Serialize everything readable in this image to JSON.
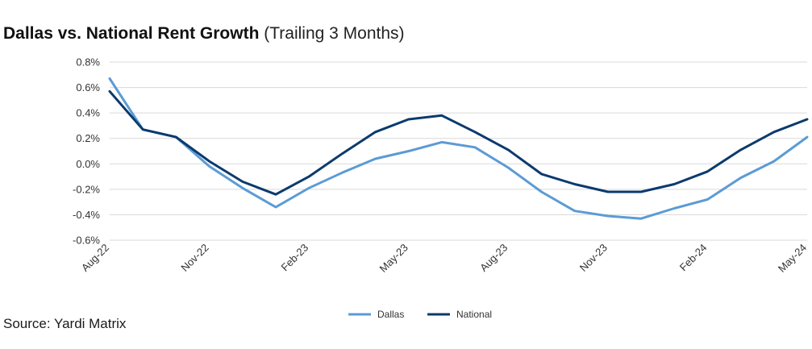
{
  "header": {
    "title": "Dallas vs. National Rent Growth",
    "subtitle": "(Trailing 3 Months)"
  },
  "footer": {
    "source": "Source: Yardi Matrix"
  },
  "chart_data": {
    "type": "line",
    "title": "Dallas vs. National Rent Growth",
    "subtitle": "(Trailing 3 Months)",
    "xlabel": "",
    "ylabel": "",
    "x": [
      "Aug-22",
      "Sep-22",
      "Oct-22",
      "Nov-22",
      "Dec-22",
      "Jan-23",
      "Feb-23",
      "Mar-23",
      "Apr-23",
      "May-23",
      "Jun-23",
      "Jul-23",
      "Aug-23",
      "Sep-23",
      "Oct-23",
      "Nov-23",
      "Dec-23",
      "Jan-24",
      "Feb-24",
      "Mar-24",
      "Apr-24",
      "May-24"
    ],
    "x_tick_labels": [
      "Aug-22",
      "Nov-22",
      "Feb-23",
      "May-23",
      "Aug-23",
      "Nov-23",
      "Feb-24",
      "May-24"
    ],
    "ylim": [
      -0.6,
      0.8
    ],
    "y_ticks": [
      0.8,
      0.6,
      0.4,
      0.2,
      0.0,
      -0.2,
      -0.4,
      -0.6
    ],
    "y_tick_labels": [
      "0.8%",
      "0.6%",
      "0.4%",
      "0.2%",
      "0.0%",
      "-0.2%",
      "-0.4%",
      "-0.6%"
    ],
    "grid": true,
    "legend_position": "bottom-center",
    "series": [
      {
        "name": "Dallas",
        "color": "#5b9bd5",
        "values": [
          0.67,
          0.27,
          0.21,
          -0.02,
          -0.19,
          -0.34,
          -0.19,
          -0.07,
          0.04,
          0.1,
          0.17,
          0.13,
          -0.03,
          -0.22,
          -0.37,
          -0.41,
          -0.43,
          -0.35,
          -0.28,
          -0.11,
          0.02,
          0.21
        ]
      },
      {
        "name": "National",
        "color": "#0b3a6e",
        "values": [
          0.57,
          0.27,
          0.21,
          0.02,
          -0.14,
          -0.24,
          -0.1,
          0.08,
          0.25,
          0.35,
          0.38,
          0.25,
          0.11,
          -0.08,
          -0.16,
          -0.22,
          -0.22,
          -0.16,
          -0.06,
          0.11,
          0.25,
          0.35
        ]
      }
    ]
  }
}
